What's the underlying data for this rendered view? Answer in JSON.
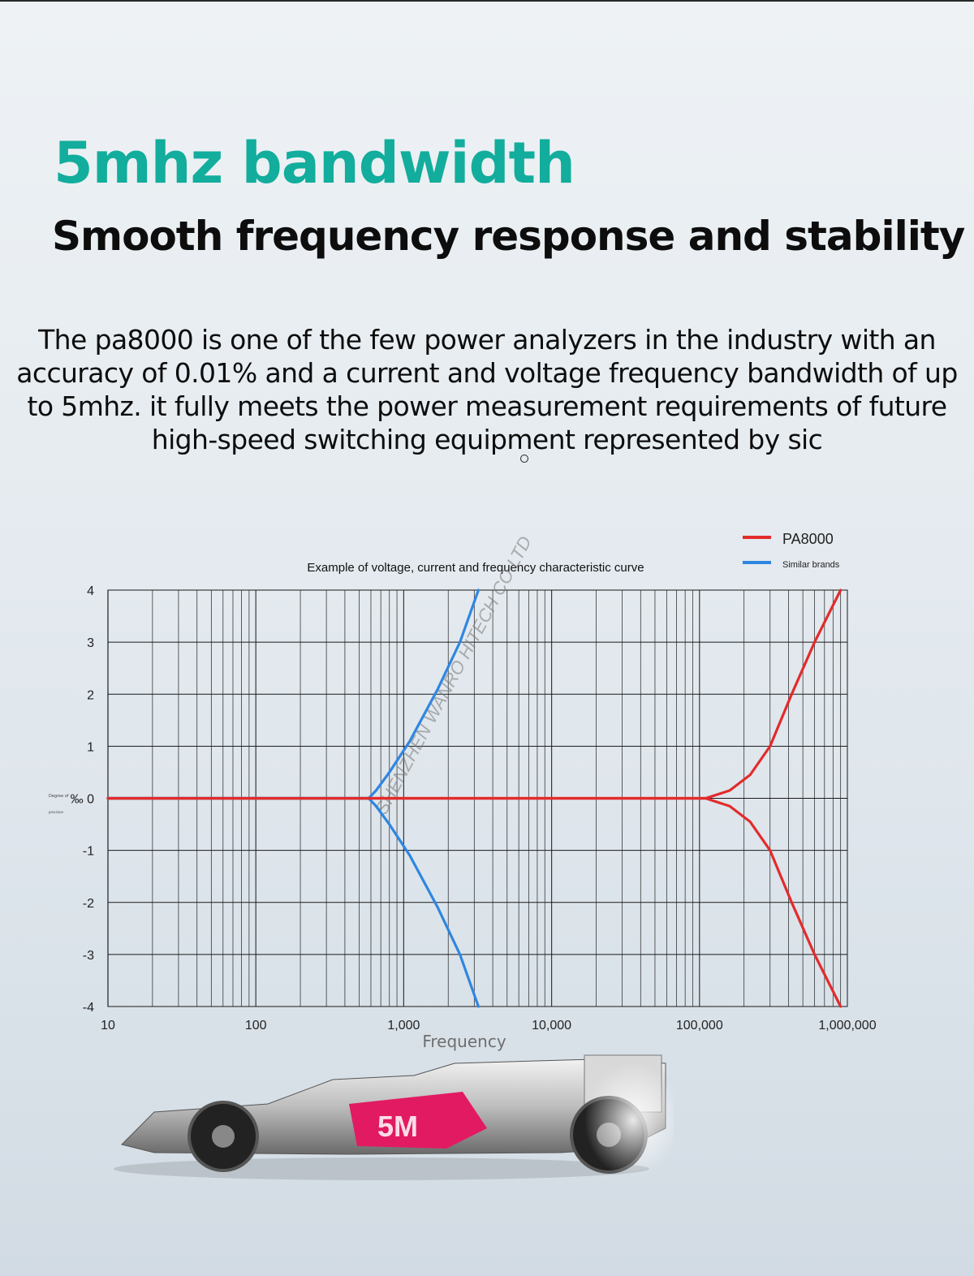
{
  "headline": "5mhz bandwidth",
  "subheadline": "Smooth frequency response and stability",
  "description": "The pa8000 is one of the few power analyzers in the industry with an accuracy of 0.01% and a current and voltage frequency bandwidth of up to 5mhz. it fully meets the power measurement requirements of future high-speed switching equipment represented by sic",
  "watermark": "SHENZHEN WANRO HITECH CO LTD",
  "car_badge": "5M",
  "colors": {
    "headline": "#12ad9c",
    "pa8000": "#e32b2b",
    "similar": "#2f86e0",
    "grid": "#1a1a1a"
  },
  "chart_data": {
    "type": "line",
    "title": "Example of voltage, current and frequency characteristic curve",
    "xlabel": "Frequency",
    "ylabel": "Degree of precision ‰",
    "xscale": "log",
    "xlim": [
      10,
      1000000
    ],
    "ylim": [
      -4,
      4
    ],
    "xticks": [
      10,
      100,
      1000,
      10000,
      100000,
      1000000
    ],
    "xtick_labels": [
      "10",
      "100",
      "1,000",
      "10,000",
      "100,000",
      "1,000,000"
    ],
    "yticks": [
      4,
      3,
      2,
      1,
      0,
      -1,
      -2,
      -3,
      -4
    ],
    "ytick_labels": [
      "4",
      "3",
      "2",
      "1",
      "‰ 0",
      "-1",
      "-2",
      "-3",
      "-4"
    ],
    "grid": true,
    "legend_position": "top-right",
    "series": [
      {
        "name": "PA8000",
        "color": "#e32b2b",
        "lines": [
          {
            "x": [
              10,
              110000,
              160000,
              220000,
              300000,
              420000,
              600000,
              900000
            ],
            "y": [
              0,
              0,
              0.15,
              0.45,
              1.0,
              2.0,
              3.0,
              4.0
            ]
          },
          {
            "x": [
              10,
              110000,
              160000,
              220000,
              300000,
              420000,
              600000,
              900000
            ],
            "y": [
              0,
              0,
              -0.15,
              -0.45,
              -1.0,
              -2.0,
              -3.0,
              -4.0
            ]
          }
        ]
      },
      {
        "name": "Similar brands",
        "color": "#2f86e0",
        "lines": [
          {
            "x": [
              10,
              580,
              650,
              800,
              1100,
              1700,
              2400,
              3200
            ],
            "y": [
              0,
              0,
              0.15,
              0.5,
              1.1,
              2.1,
              3.0,
              4.0
            ]
          },
          {
            "x": [
              10,
              580,
              650,
              800,
              1100,
              1700,
              2400,
              3200
            ],
            "y": [
              0,
              0,
              -0.15,
              -0.5,
              -1.1,
              -2.1,
              -3.0,
              -4.0
            ]
          }
        ]
      }
    ]
  }
}
